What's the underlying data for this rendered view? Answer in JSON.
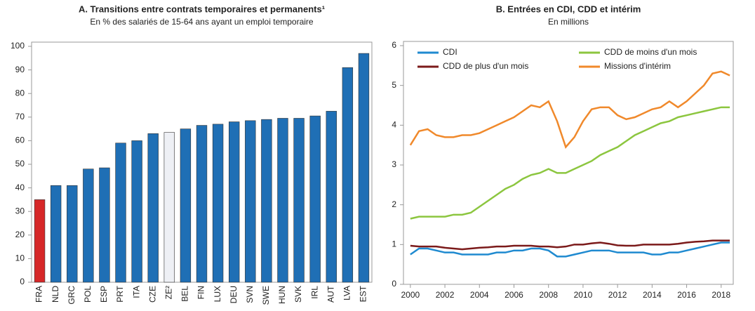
{
  "chart_data": [
    {
      "type": "bar",
      "title": "A. Transitions entre contrats temporaires et permanents¹",
      "subtitle": "En % des salariés de 15-64 ans ayant un emploi temporaire",
      "categories": [
        "FRA",
        "NLD",
        "GRC",
        "POL",
        "ESP",
        "PRT",
        "ITA",
        "CZE",
        "ZE²",
        "BEL",
        "FIN",
        "LUX",
        "DEU",
        "SVN",
        "SWE",
        "HUN",
        "SVK",
        "IRL",
        "AUT",
        "LVA",
        "EST"
      ],
      "values": [
        35,
        41,
        41,
        48,
        48.5,
        59,
        60,
        63,
        63.5,
        65,
        66.5,
        67,
        68,
        68.5,
        69,
        69.5,
        69.5,
        70.5,
        72.5,
        91,
        97
      ],
      "colors": [
        "#d62728",
        "#1f6fb5",
        "#1f6fb5",
        "#1f6fb5",
        "#1f6fb5",
        "#1f6fb5",
        "#1f6fb5",
        "#1f6fb5",
        "#eef0f5",
        "#1f6fb5",
        "#1f6fb5",
        "#1f6fb5",
        "#1f6fb5",
        "#1f6fb5",
        "#1f6fb5",
        "#1f6fb5",
        "#1f6fb5",
        "#1f6fb5",
        "#1f6fb5",
        "#1f6fb5",
        "#1f6fb5"
      ],
      "ylim": [
        0,
        100
      ],
      "yticks": [
        0,
        10,
        20,
        30,
        40,
        50,
        60,
        70,
        80,
        90,
        100
      ],
      "grid": false
    },
    {
      "type": "line",
      "title": "B. Entrées en CDI, CDD et intérim",
      "subtitle": "En millions",
      "x": [
        2000,
        2000.5,
        2001,
        2001.5,
        2002,
        2002.5,
        2003,
        2003.5,
        2004,
        2004.5,
        2005,
        2005.5,
        2006,
        2006.5,
        2007,
        2007.5,
        2008,
        2008.5,
        2009,
        2009.5,
        2010,
        2010.5,
        2011,
        2011.5,
        2012,
        2012.5,
        2013,
        2013.5,
        2014,
        2014.5,
        2015,
        2015.5,
        2016,
        2016.5,
        2017,
        2017.5,
        2018,
        2018.5
      ],
      "series": [
        {
          "name": "CDI",
          "color": "#1f8ad0",
          "values": [
            0.75,
            0.9,
            0.9,
            0.85,
            0.8,
            0.8,
            0.75,
            0.75,
            0.75,
            0.75,
            0.8,
            0.8,
            0.85,
            0.85,
            0.9,
            0.9,
            0.85,
            0.7,
            0.7,
            0.75,
            0.8,
            0.85,
            0.85,
            0.85,
            0.8,
            0.8,
            0.8,
            0.8,
            0.75,
            0.75,
            0.8,
            0.8,
            0.85,
            0.9,
            0.95,
            1.0,
            1.05,
            1.05
          ]
        },
        {
          "name": "CDD de moins d'un mois",
          "color": "#8cc63f",
          "values": [
            1.65,
            1.7,
            1.7,
            1.7,
            1.7,
            1.75,
            1.75,
            1.8,
            1.95,
            2.1,
            2.25,
            2.4,
            2.5,
            2.65,
            2.75,
            2.8,
            2.9,
            2.8,
            2.8,
            2.9,
            3.0,
            3.1,
            3.25,
            3.35,
            3.45,
            3.6,
            3.75,
            3.85,
            3.95,
            4.05,
            4.1,
            4.2,
            4.25,
            4.3,
            4.35,
            4.4,
            4.45,
            4.45
          ]
        },
        {
          "name": "CDD de plus d'un mois",
          "color": "#7b1a1a",
          "values": [
            0.97,
            0.95,
            0.95,
            0.95,
            0.92,
            0.9,
            0.88,
            0.9,
            0.92,
            0.93,
            0.95,
            0.95,
            0.97,
            0.97,
            0.97,
            0.95,
            0.95,
            0.93,
            0.95,
            1.0,
            1.0,
            1.03,
            1.05,
            1.02,
            0.98,
            0.97,
            0.97,
            1.0,
            1.0,
            1.0,
            1.0,
            1.02,
            1.05,
            1.07,
            1.08,
            1.1,
            1.1,
            1.1
          ]
        },
        {
          "name": "Missions d'intérim",
          "color": "#f0892b",
          "values": [
            3.5,
            3.85,
            3.9,
            3.75,
            3.7,
            3.7,
            3.75,
            3.75,
            3.8,
            3.9,
            4.0,
            4.1,
            4.2,
            4.35,
            4.5,
            4.45,
            4.6,
            4.1,
            3.45,
            3.7,
            4.1,
            4.4,
            4.45,
            4.45,
            4.25,
            4.15,
            4.2,
            4.3,
            4.4,
            4.45,
            4.6,
            4.45,
            4.6,
            4.8,
            5.0,
            5.3,
            5.35,
            5.25
          ]
        }
      ],
      "xlim": [
        1999.6,
        2018.7
      ],
      "xticks": [
        2000,
        2002,
        2004,
        2006,
        2008,
        2010,
        2012,
        2014,
        2016,
        2018
      ],
      "ylim": [
        0,
        6
      ],
      "yticks": [
        0,
        1,
        2,
        3,
        4,
        5,
        6
      ],
      "grid": false,
      "legend": "top"
    }
  ]
}
